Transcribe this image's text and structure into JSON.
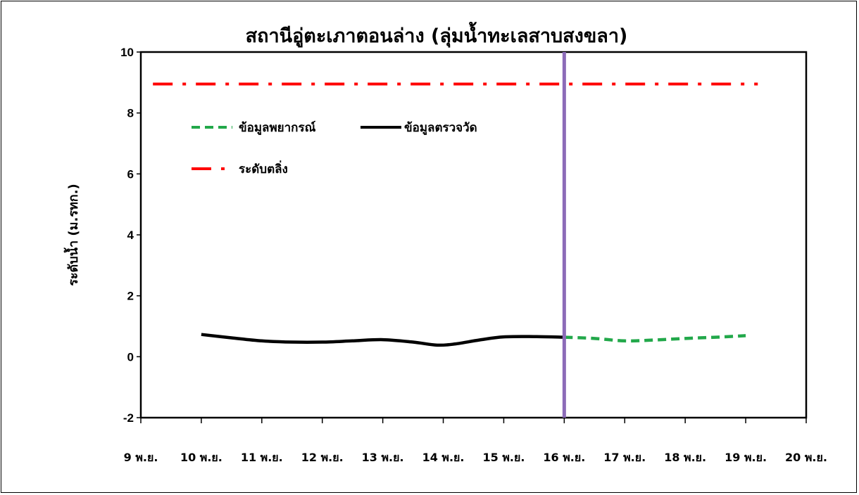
{
  "chart_data": {
    "type": "line",
    "title": "สถานีอู่ตะเภาตอนล่าง (ลุ่มน้ำทะเลสาบสงขลา)",
    "xlabel": "",
    "ylabel": "ระดับน้ำ (ม.รทก.)",
    "ylim": [
      -2,
      10
    ],
    "yticks": [
      -2,
      0,
      2,
      4,
      6,
      8,
      10
    ],
    "xlim": [
      0,
      11
    ],
    "xtick_labels": [
      "9 พ.ย.",
      "10 พ.ย.",
      "11 พ.ย.",
      "12 พ.ย.",
      "13 พ.ย.",
      "14 พ.ย.",
      "15 พ.ย.",
      "16 พ.ย.",
      "17 พ.ย.",
      "18 พ.ย.",
      "19 พ.ย.",
      "20 พ.ย."
    ],
    "current_marker_x": 7,
    "grid": false,
    "legend_position": "top-left",
    "series": [
      {
        "name": "ข้อมูลพยากรณ์",
        "style": "dashed",
        "color": "#22a84a",
        "points": [
          [
            7,
            0.64
          ],
          [
            7.5,
            0.6
          ],
          [
            8,
            0.52
          ],
          [
            8.5,
            0.55
          ],
          [
            9,
            0.6
          ],
          [
            9.5,
            0.64
          ],
          [
            10,
            0.69
          ]
        ]
      },
      {
        "name": "ข้อมูลตรวจวัด",
        "style": "solid",
        "color": "#000000",
        "points": [
          [
            1,
            0.73
          ],
          [
            1.5,
            0.62
          ],
          [
            2,
            0.52
          ],
          [
            2.5,
            0.48
          ],
          [
            3,
            0.48
          ],
          [
            3.5,
            0.52
          ],
          [
            4,
            0.56
          ],
          [
            4.5,
            0.48
          ],
          [
            4.9,
            0.38
          ],
          [
            5.2,
            0.42
          ],
          [
            5.6,
            0.55
          ],
          [
            6,
            0.65
          ],
          [
            6.5,
            0.66
          ],
          [
            7,
            0.64
          ]
        ]
      },
      {
        "name": "ระดับตลิ่ง",
        "style": "dashdot",
        "color": "#ff0000",
        "points": [
          [
            0.2,
            8.95
          ],
          [
            10.2,
            8.95
          ]
        ]
      }
    ]
  }
}
